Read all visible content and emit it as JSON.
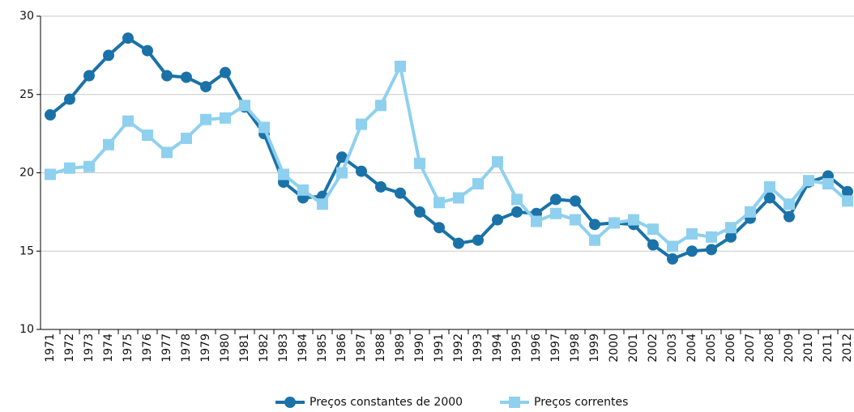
{
  "chart_data": {
    "type": "line",
    "categories": [
      "1971",
      "1972",
      "1973",
      "1974",
      "1975",
      "1976",
      "1977",
      "1978",
      "1979",
      "1980",
      "1981",
      "1982",
      "1983",
      "1984",
      "1985",
      "1986",
      "1987",
      "1988",
      "1989",
      "1990",
      "1991",
      "1992",
      "1993",
      "1994",
      "1995",
      "1996",
      "1997",
      "1998",
      "1999",
      "2000",
      "2001",
      "2002",
      "2003",
      "2004",
      "2005",
      "2006",
      "2007",
      "2008",
      "2009",
      "2010",
      "2011",
      "2012"
    ],
    "series": [
      {
        "name": "Preços constantes de 2000",
        "color": "#1a72a8",
        "marker": "circle",
        "values": [
          23.7,
          24.7,
          26.2,
          27.5,
          28.6,
          27.8,
          26.2,
          26.1,
          25.5,
          26.4,
          24.2,
          22.5,
          19.4,
          18.4,
          18.5,
          21.0,
          20.1,
          19.1,
          18.7,
          17.5,
          16.5,
          15.5,
          15.7,
          17.0,
          17.5,
          17.4,
          18.3,
          18.2,
          16.7,
          16.8,
          16.7,
          15.4,
          14.5,
          15.0,
          15.1,
          15.9,
          17.1,
          18.4,
          17.2,
          19.4,
          19.8,
          18.8
        ]
      },
      {
        "name": "Preços correntes",
        "color": "#8fd0ef",
        "marker": "square",
        "values": [
          19.9,
          20.3,
          20.4,
          21.8,
          23.3,
          22.4,
          21.3,
          22.2,
          23.4,
          23.5,
          24.3,
          22.9,
          19.9,
          18.9,
          18.0,
          20.0,
          23.1,
          24.3,
          26.8,
          20.6,
          18.1,
          18.4,
          19.3,
          20.7,
          18.3,
          16.9,
          17.4,
          17.0,
          15.7,
          16.8,
          17.0,
          16.4,
          15.3,
          16.1,
          15.9,
          16.5,
          17.5,
          19.1,
          18.0,
          19.5,
          19.3,
          18.2
        ]
      }
    ],
    "ylim": [
      10,
      30
    ],
    "yticks": [
      10,
      15,
      20,
      25,
      30
    ],
    "grid": true
  }
}
